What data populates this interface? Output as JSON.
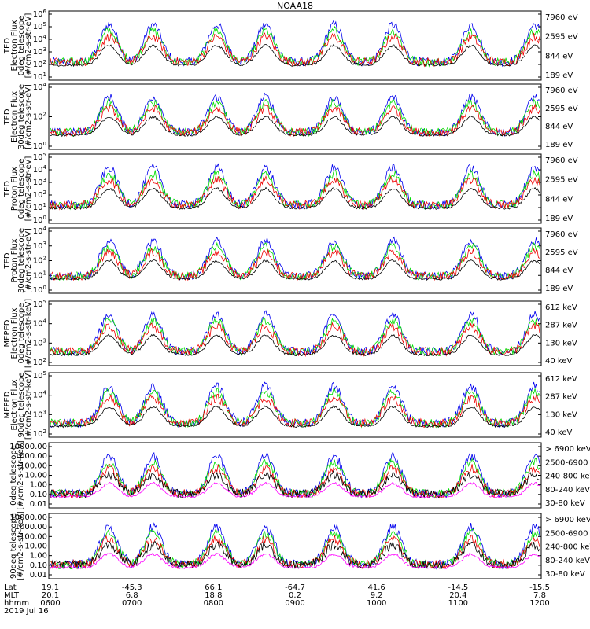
{
  "title": "NOAA18",
  "colors": {
    "black": "#000000",
    "red": "#ee0000",
    "green": "#00dd00",
    "blue": "#0000ee",
    "magenta": "#ff00ff"
  },
  "chart_data": [
    {
      "type": "line",
      "instrument": "TED",
      "ylabel": [
        "TED",
        "Electron Flux",
        "0deg telescope",
        "[#/cm2-s-str-eV]"
      ],
      "yscale": "log",
      "yticks": [
        "10^1",
        "10^2",
        "10^3",
        "10^4",
        "10^5",
        "10^6"
      ],
      "ylim": [
        10,
        1000000
      ],
      "legend": [
        {
          "label": "7960 eV",
          "color": "black"
        },
        {
          "label": "2595 eV",
          "color": "red"
        },
        {
          "label": "844 eV",
          "color": "green"
        },
        {
          "label": "189 eV",
          "color": "blue"
        }
      ]
    },
    {
      "type": "line",
      "instrument": "TED",
      "ylabel": [
        "TED",
        "Electron Flux",
        "30deg telescope",
        "[#/cm2-s-str-eV]"
      ],
      "yscale": "log",
      "yticks": [
        "10^0",
        "10^2",
        "10^4"
      ],
      "ylim": [
        1,
        100000
      ],
      "legend": [
        {
          "label": "7960 eV",
          "color": "black"
        },
        {
          "label": "2595 eV",
          "color": "red"
        },
        {
          "label": "844 eV",
          "color": "green"
        },
        {
          "label": "189 eV",
          "color": "blue"
        }
      ]
    },
    {
      "type": "line",
      "instrument": "TED",
      "ylabel": [
        "TED",
        "Proton Flux",
        "0deg telescope",
        "[#/cm2-s-str-eV]"
      ],
      "yscale": "log",
      "yticks": [
        "10^0",
        "10^1",
        "10^2",
        "10^3",
        "10^4",
        "10^5"
      ],
      "ylim": [
        1,
        100000
      ],
      "legend": [
        {
          "label": "7960 eV",
          "color": "black"
        },
        {
          "label": "2595 eV",
          "color": "red"
        },
        {
          "label": "844 eV",
          "color": "green"
        },
        {
          "label": "189 eV",
          "color": "blue"
        }
      ]
    },
    {
      "type": "line",
      "instrument": "TED",
      "ylabel": [
        "TED",
        "Proton Flux",
        "30deg telescope",
        "[#/cm2-s-str-eV]"
      ],
      "yscale": "log",
      "yticks": [
        "10^0",
        "10^1",
        "10^2",
        "10^3",
        "10^4"
      ],
      "ylim": [
        1,
        100000
      ],
      "legend": [
        {
          "label": "7960 eV",
          "color": "black"
        },
        {
          "label": "2595 eV",
          "color": "red"
        },
        {
          "label": "844 eV",
          "color": "green"
        },
        {
          "label": "189 eV",
          "color": "blue"
        }
      ]
    },
    {
      "type": "line",
      "instrument": "MEPED",
      "ylabel": [
        "MEPED",
        "Electron Flux",
        "0deg telescope",
        "[#/cm2-s-str-keV]"
      ],
      "yscale": "log",
      "yticks": [
        "10^2",
        "10^3",
        "10^4",
        "10^5"
      ],
      "ylim": [
        100,
        100000
      ],
      "legend": [
        {
          "label": "612 keV",
          "color": "black"
        },
        {
          "label": "287 keV",
          "color": "red"
        },
        {
          "label": "130 keV",
          "color": "green"
        },
        {
          "label": "40 keV",
          "color": "blue"
        }
      ]
    },
    {
      "type": "line",
      "instrument": "MEPED",
      "ylabel": [
        "MEPED",
        "Electron Flux",
        "90deg telescope",
        "[#/cm2-s-str-keV]"
      ],
      "yscale": "log",
      "yticks": [
        "10^2",
        "10^3",
        "10^4",
        "10^5"
      ],
      "ylim": [
        100,
        100000
      ],
      "legend": [
        {
          "label": "612 keV",
          "color": "black"
        },
        {
          "label": "287 keV",
          "color": "red"
        },
        {
          "label": "130 keV",
          "color": "green"
        },
        {
          "label": "40 keV",
          "color": "blue"
        }
      ]
    },
    {
      "type": "line",
      "instrument": "MEPED",
      "ylabel": [
        "0deg telescope",
        "[#/cm2-s-str-keV]"
      ],
      "yscale": "log",
      "yticks": [
        "10000.00",
        "1000.00",
        "100.00",
        "10.00",
        "1.00",
        "0.10",
        "0.01"
      ],
      "ylim": [
        0.01,
        10000
      ],
      "legend": [
        {
          "label": "> 6900 keV",
          "color": "magenta"
        },
        {
          "label": "2500-6900",
          "color": "black"
        },
        {
          "label": "240-800 keV",
          "color": "red"
        },
        {
          "label": "80-240 keV",
          "color": "green"
        },
        {
          "label": "30-80 keV",
          "color": "blue"
        }
      ]
    },
    {
      "type": "line",
      "instrument": "MEPED",
      "ylabel": [
        "90deg telescope",
        "[#/cm2-s-str-keV]"
      ],
      "yscale": "log",
      "yticks": [
        "10000.00",
        "1000.00",
        "100.00",
        "10.00",
        "1.00",
        "0.10",
        "0.01"
      ],
      "ylim": [
        0.01,
        10000
      ],
      "legend": [
        {
          "label": "> 6900 keV",
          "color": "magenta"
        },
        {
          "label": "2500-6900",
          "color": "black"
        },
        {
          "label": "240-800 keV",
          "color": "red"
        },
        {
          "label": "80-240 keV",
          "color": "green"
        },
        {
          "label": "30-80 keV",
          "color": "blue"
        }
      ]
    }
  ],
  "xaxis": {
    "row_labels": [
      "Lat",
      "MLT",
      "hhmm"
    ],
    "date": "2019 Jul 16",
    "ticks": [
      {
        "lat": "19.1",
        "mlt": "20.1",
        "hhmm": "0600"
      },
      {
        "lat": "-45.3",
        "mlt": "6.8",
        "hhmm": "0700"
      },
      {
        "lat": "66.1",
        "mlt": "18.8",
        "hhmm": "0800"
      },
      {
        "lat": "-64.7",
        "mlt": "0.2",
        "hhmm": "0900"
      },
      {
        "lat": "41.6",
        "mlt": "9.2",
        "hhmm": "1000"
      },
      {
        "lat": "-14.5",
        "mlt": "20.4",
        "hhmm": "1100"
      },
      {
        "lat": "-15.5",
        "mlt": "7.8",
        "hhmm": "1200"
      }
    ]
  }
}
